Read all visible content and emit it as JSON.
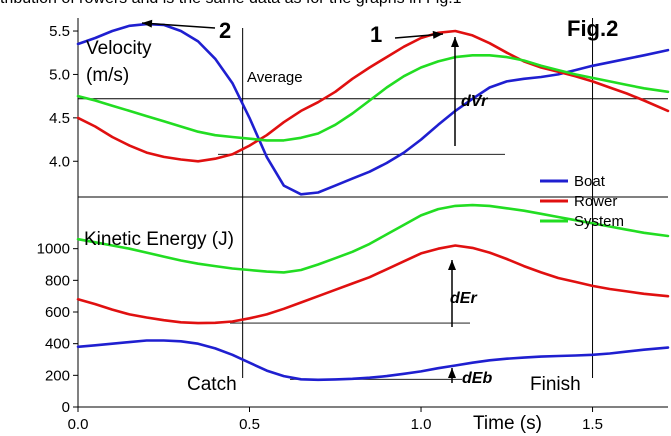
{
  "header_text": "tribution of rowers and is the same data as for the graphs in Fig.1",
  "figure_label": "Fig.2",
  "colors": {
    "boat": "#1f1fd0",
    "rower": "#e01010",
    "system": "#22dd22",
    "axis": "#000000"
  },
  "chart_data": [
    {
      "type": "line",
      "ylabel_line1": "Velocity",
      "ylabel_line2": "(m/s)",
      "ylim": [
        3.6,
        5.65
      ],
      "yticks": [
        "4.0",
        "4.5",
        "5.0",
        "5.5"
      ],
      "xlim": [
        0,
        1.72
      ],
      "series": [
        {
          "name": "Boat",
          "x": [
            0,
            0.05,
            0.1,
            0.15,
            0.2,
            0.25,
            0.3,
            0.35,
            0.4,
            0.45,
            0.5,
            0.55,
            0.6,
            0.65,
            0.7,
            0.75,
            0.8,
            0.85,
            0.9,
            0.95,
            1.0,
            1.05,
            1.1,
            1.15,
            1.2,
            1.25,
            1.3,
            1.35,
            1.4,
            1.45,
            1.5,
            1.55,
            1.6,
            1.65,
            1.72
          ],
          "values": [
            5.35,
            5.42,
            5.5,
            5.56,
            5.58,
            5.57,
            5.5,
            5.38,
            5.18,
            4.9,
            4.5,
            4.05,
            3.72,
            3.62,
            3.64,
            3.72,
            3.8,
            3.88,
            3.98,
            4.1,
            4.25,
            4.42,
            4.58,
            4.72,
            4.85,
            4.92,
            4.95,
            4.97,
            5.0,
            5.05,
            5.1,
            5.14,
            5.18,
            5.22,
            5.28
          ]
        },
        {
          "name": "Rower",
          "x": [
            0,
            0.05,
            0.1,
            0.15,
            0.2,
            0.25,
            0.3,
            0.35,
            0.4,
            0.45,
            0.5,
            0.55,
            0.6,
            0.65,
            0.7,
            0.75,
            0.8,
            0.85,
            0.9,
            0.95,
            1.0,
            1.05,
            1.1,
            1.15,
            1.2,
            1.25,
            1.3,
            1.35,
            1.4,
            1.45,
            1.5,
            1.55,
            1.6,
            1.65,
            1.72
          ],
          "values": [
            4.5,
            4.4,
            4.28,
            4.18,
            4.1,
            4.05,
            4.02,
            4.0,
            4.03,
            4.08,
            4.18,
            4.3,
            4.45,
            4.58,
            4.68,
            4.8,
            4.95,
            5.08,
            5.2,
            5.32,
            5.42,
            5.48,
            5.5,
            5.45,
            5.36,
            5.25,
            5.15,
            5.08,
            5.03,
            4.98,
            4.92,
            4.85,
            4.78,
            4.7,
            4.58
          ]
        },
        {
          "name": "System",
          "x": [
            0,
            0.05,
            0.1,
            0.15,
            0.2,
            0.25,
            0.3,
            0.35,
            0.4,
            0.45,
            0.5,
            0.55,
            0.6,
            0.65,
            0.7,
            0.75,
            0.8,
            0.85,
            0.9,
            0.95,
            1.0,
            1.05,
            1.1,
            1.15,
            1.2,
            1.25,
            1.3,
            1.35,
            1.4,
            1.45,
            1.5,
            1.55,
            1.6,
            1.65,
            1.72
          ],
          "values": [
            4.75,
            4.7,
            4.64,
            4.58,
            4.52,
            4.46,
            4.4,
            4.34,
            4.3,
            4.28,
            4.26,
            4.24,
            4.24,
            4.27,
            4.32,
            4.42,
            4.55,
            4.7,
            4.85,
            4.98,
            5.08,
            5.15,
            5.2,
            5.22,
            5.22,
            5.2,
            5.16,
            5.1,
            5.05,
            5.0,
            4.96,
            4.92,
            4.88,
            4.84,
            4.8
          ]
        }
      ],
      "reference_lines": {
        "average_y": 4.72,
        "dvr_baseline_y": 4.08,
        "catch_x": 0.48,
        "finish_x": 1.5
      },
      "annotations": {
        "average": "Average",
        "dvr": "dVr",
        "marker1": "1",
        "marker2": "2"
      },
      "legend": {
        "placement": "right",
        "entries": [
          "Boat",
          "Rower",
          "System"
        ]
      }
    },
    {
      "type": "line",
      "ylabel": "Kinetic Energy (J)",
      "ylim": [
        0,
        1320
      ],
      "yticks": [
        "0",
        "200",
        "400",
        "600",
        "800",
        "1000"
      ],
      "xlim": [
        0,
        1.72
      ],
      "xlabel": "Time (s)",
      "xticks": [
        "0.0",
        "0.5",
        "1.0",
        "1.5"
      ],
      "series": [
        {
          "name": "Boat",
          "x": [
            0,
            0.05,
            0.1,
            0.15,
            0.2,
            0.25,
            0.3,
            0.35,
            0.4,
            0.45,
            0.5,
            0.55,
            0.6,
            0.65,
            0.7,
            0.75,
            0.8,
            0.85,
            0.9,
            0.95,
            1.0,
            1.05,
            1.1,
            1.15,
            1.2,
            1.25,
            1.3,
            1.35,
            1.4,
            1.45,
            1.5,
            1.55,
            1.6,
            1.65,
            1.72
          ],
          "values": [
            380,
            390,
            400,
            410,
            420,
            420,
            415,
            400,
            370,
            330,
            280,
            230,
            195,
            175,
            172,
            174,
            178,
            185,
            195,
            210,
            225,
            245,
            262,
            280,
            295,
            305,
            312,
            318,
            322,
            325,
            330,
            338,
            350,
            362,
            375
          ]
        },
        {
          "name": "Rower",
          "x": [
            0,
            0.05,
            0.1,
            0.15,
            0.2,
            0.25,
            0.3,
            0.35,
            0.4,
            0.45,
            0.5,
            0.55,
            0.6,
            0.65,
            0.7,
            0.75,
            0.8,
            0.85,
            0.9,
            0.95,
            1.0,
            1.05,
            1.1,
            1.15,
            1.2,
            1.25,
            1.3,
            1.35,
            1.4,
            1.45,
            1.5,
            1.55,
            1.6,
            1.65,
            1.72
          ],
          "values": [
            680,
            650,
            615,
            585,
            565,
            548,
            535,
            530,
            532,
            540,
            560,
            585,
            620,
            660,
            700,
            740,
            780,
            820,
            870,
            920,
            970,
            1000,
            1020,
            1005,
            975,
            935,
            890,
            850,
            815,
            790,
            765,
            745,
            730,
            715,
            700
          ]
        },
        {
          "name": "System",
          "x": [
            0,
            0.05,
            0.1,
            0.15,
            0.2,
            0.25,
            0.3,
            0.35,
            0.4,
            0.45,
            0.5,
            0.55,
            0.6,
            0.65,
            0.7,
            0.75,
            0.8,
            0.85,
            0.9,
            0.95,
            1.0,
            1.05,
            1.1,
            1.15,
            1.2,
            1.25,
            1.3,
            1.35,
            1.4,
            1.45,
            1.5,
            1.55,
            1.6,
            1.65,
            1.72
          ],
          "values": [
            1060,
            1040,
            1020,
            1000,
            975,
            950,
            925,
            905,
            890,
            875,
            865,
            855,
            850,
            865,
            900,
            940,
            980,
            1030,
            1090,
            1150,
            1210,
            1250,
            1270,
            1275,
            1270,
            1255,
            1240,
            1220,
            1200,
            1180,
            1160,
            1140,
            1120,
            1100,
            1080
          ]
        }
      ],
      "reference_lines": {
        "catch_x": 0.48,
        "finish_x": 1.5,
        "der_baseline_y": 530,
        "deb_baseline_y": 175
      },
      "annotations": {
        "catch": "Catch",
        "finish": "Finish",
        "der": "dEr",
        "deb": "dEb"
      }
    }
  ]
}
